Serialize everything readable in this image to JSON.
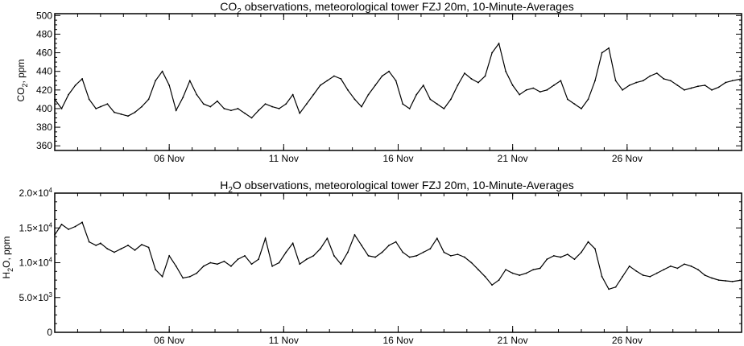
{
  "chart_data": [
    {
      "type": "line",
      "title": "CO",
      "title_sub": "2",
      "title_rest": " observations, meteorological tower FZJ 20m, 10-Minute-Averages",
      "ylabel": "CO",
      "ylabel_sub": "2",
      "ylabel_rest": ", ppm",
      "xlabel": "",
      "xlim_days": [
        1,
        31
      ],
      "ylim": [
        355,
        502
      ],
      "yticks": [
        {
          "value": 360,
          "label": "360"
        },
        {
          "value": 380,
          "label": "380"
        },
        {
          "value": 400,
          "label": "400"
        },
        {
          "value": 420,
          "label": "420"
        },
        {
          "value": 440,
          "label": "440"
        },
        {
          "value": 460,
          "label": "460"
        },
        {
          "value": 480,
          "label": "480"
        },
        {
          "value": 500,
          "label": "500"
        }
      ],
      "xticks": [
        {
          "value": 6,
          "label": "06 Nov"
        },
        {
          "value": 11,
          "label": "11 Nov"
        },
        {
          "value": 16,
          "label": "16 Nov"
        },
        {
          "value": 21,
          "label": "21 Nov"
        },
        {
          "value": 26,
          "label": "26 Nov"
        }
      ],
      "series": [
        {
          "x": [
            1.0,
            1.3,
            1.6,
            1.9,
            2.2,
            2.5,
            2.8,
            3.0,
            3.3,
            3.6,
            3.9,
            4.2,
            4.5,
            4.8,
            5.1,
            5.4,
            5.7,
            6.0,
            6.3,
            6.6,
            6.9,
            7.2,
            7.5,
            7.8,
            8.1,
            8.4,
            8.7,
            9.0,
            9.3,
            9.6,
            9.9,
            10.2,
            10.5,
            10.8,
            11.1,
            11.4,
            11.7,
            12.0,
            12.3,
            12.6,
            12.9,
            13.2,
            13.5,
            13.8,
            14.1,
            14.4,
            14.7,
            15.0,
            15.3,
            15.6,
            15.9,
            16.2,
            16.5,
            16.8,
            17.1,
            17.4,
            17.7,
            18.0,
            18.3,
            18.6,
            18.9,
            19.2,
            19.5,
            19.8,
            20.1,
            20.4,
            20.7,
            21.0,
            21.3,
            21.6,
            21.9,
            22.2,
            22.5,
            22.8,
            23.1,
            23.4,
            23.7,
            24.0,
            24.3,
            24.6,
            24.9,
            25.2,
            25.5,
            25.8,
            26.1,
            26.4,
            26.7,
            27.0,
            27.3,
            27.6,
            27.9,
            28.2,
            28.5,
            28.8,
            29.1,
            29.4,
            29.7,
            30.0,
            30.3,
            30.6,
            31.0
          ],
          "y": [
            410,
            400,
            415,
            425,
            432,
            410,
            400,
            402,
            405,
            396,
            394,
            392,
            396,
            402,
            410,
            430,
            440,
            425,
            398,
            412,
            430,
            415,
            405,
            402,
            408,
            400,
            398,
            400,
            395,
            390,
            398,
            405,
            402,
            400,
            405,
            415,
            395,
            405,
            415,
            425,
            430,
            435,
            432,
            420,
            410,
            402,
            415,
            425,
            435,
            440,
            430,
            405,
            400,
            415,
            425,
            410,
            405,
            400,
            410,
            425,
            438,
            432,
            428,
            435,
            460,
            470,
            440,
            425,
            415,
            420,
            422,
            418,
            420,
            425,
            430,
            410,
            405,
            400,
            410,
            430,
            460,
            465,
            430,
            420,
            425,
            428,
            430,
            435,
            438,
            432,
            430,
            425,
            420,
            422,
            424,
            425,
            420,
            423,
            428,
            430,
            432
          ]
        }
      ]
    },
    {
      "type": "line",
      "title": "H",
      "title_sub": "2",
      "title_rest": "O observations, meteorological tower FZJ 20m, 10-Minute-Averages",
      "ylabel": "H",
      "ylabel_sub": "2",
      "ylabel_rest": "O, ppm",
      "xlabel": "",
      "xlim_days": [
        1,
        31
      ],
      "ylim": [
        0,
        20000
      ],
      "yticks": [
        {
          "value": 0,
          "label": "0"
        },
        {
          "value": 5000,
          "label": "5.0×10",
          "exp": "3"
        },
        {
          "value": 10000,
          "label": "1.0×10",
          "exp": "4"
        },
        {
          "value": 15000,
          "label": "1.5×10",
          "exp": "4"
        },
        {
          "value": 20000,
          "label": "2.0×10",
          "exp": "4"
        }
      ],
      "xticks": [
        {
          "value": 6,
          "label": "06 Nov"
        },
        {
          "value": 11,
          "label": "11 Nov"
        },
        {
          "value": 16,
          "label": "16 Nov"
        },
        {
          "value": 21,
          "label": "21 Nov"
        },
        {
          "value": 26,
          "label": "26 Nov"
        }
      ],
      "series": [
        {
          "x": [
            1.0,
            1.3,
            1.6,
            1.9,
            2.2,
            2.5,
            2.8,
            3.0,
            3.3,
            3.6,
            3.9,
            4.2,
            4.5,
            4.8,
            5.1,
            5.4,
            5.7,
            6.0,
            6.3,
            6.6,
            6.9,
            7.2,
            7.5,
            7.8,
            8.1,
            8.4,
            8.7,
            9.0,
            9.3,
            9.6,
            9.9,
            10.2,
            10.5,
            10.8,
            11.1,
            11.4,
            11.7,
            12.0,
            12.3,
            12.6,
            12.9,
            13.2,
            13.5,
            13.8,
            14.1,
            14.4,
            14.7,
            15.0,
            15.3,
            15.6,
            15.9,
            16.2,
            16.5,
            16.8,
            17.1,
            17.4,
            17.7,
            18.0,
            18.3,
            18.6,
            18.9,
            19.2,
            19.5,
            19.8,
            20.1,
            20.4,
            20.7,
            21.0,
            21.3,
            21.6,
            21.9,
            22.2,
            22.5,
            22.8,
            23.1,
            23.4,
            23.7,
            24.0,
            24.3,
            24.6,
            24.9,
            25.2,
            25.5,
            25.8,
            26.1,
            26.4,
            26.7,
            27.0,
            27.3,
            27.6,
            27.9,
            28.2,
            28.5,
            28.8,
            29.1,
            29.4,
            29.7,
            30.0,
            30.3,
            30.6,
            31.0
          ],
          "y": [
            14000,
            15500,
            14800,
            15200,
            15800,
            13000,
            12500,
            12800,
            12000,
            11500,
            12000,
            12500,
            11800,
            12600,
            12200,
            9000,
            8000,
            11000,
            9500,
            7800,
            8000,
            8500,
            9500,
            10000,
            9800,
            10200,
            9500,
            10500,
            11000,
            9800,
            10500,
            13500,
            9500,
            10000,
            11500,
            12800,
            9800,
            10500,
            11000,
            12000,
            13500,
            11000,
            9800,
            11500,
            14000,
            12500,
            11000,
            10800,
            11500,
            12500,
            13000,
            11500,
            10800,
            11000,
            11500,
            12000,
            13500,
            11500,
            11000,
            11200,
            10800,
            10000,
            9000,
            8000,
            6800,
            7500,
            9000,
            8500,
            8200,
            8500,
            9000,
            9200,
            10500,
            11000,
            10800,
            11200,
            10500,
            11500,
            13000,
            12000,
            8000,
            6200,
            6500,
            8000,
            9500,
            8800,
            8200,
            8000,
            8500,
            9000,
            9500,
            9200,
            9800,
            9500,
            9000,
            8200,
            7800,
            7500,
            7400,
            7300,
            7500
          ]
        }
      ]
    }
  ]
}
